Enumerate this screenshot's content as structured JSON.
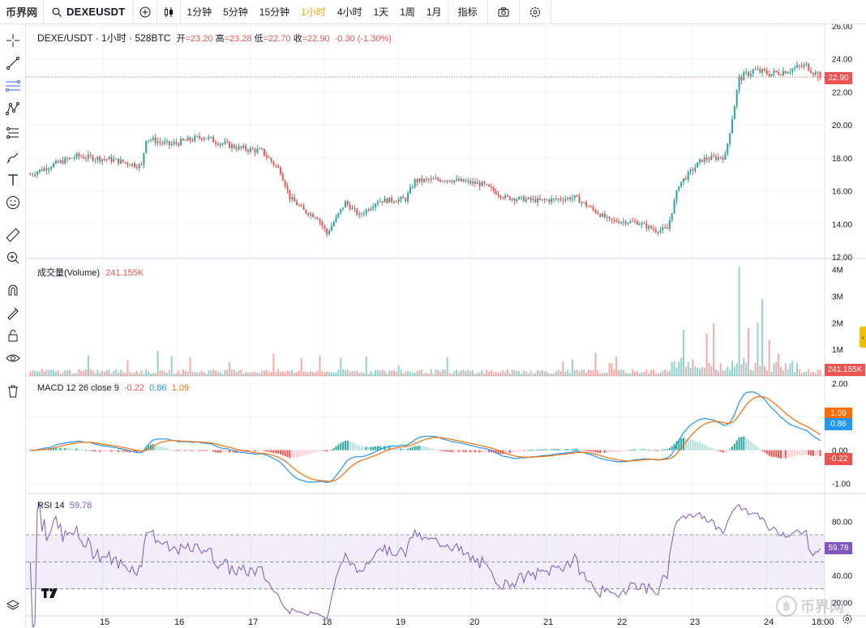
{
  "toolbar": {
    "logo": "币界网",
    "symbol": "DEXEUSDT",
    "intervals": [
      "1分钟",
      "5分钟",
      "15分钟",
      "1小时",
      "4小时",
      "1天",
      "1周",
      "1月"
    ],
    "active_interval": "1小时",
    "indicators_label": "指标"
  },
  "main_legend": {
    "title": "DEXE/USDT · 1小时 · 528BTC",
    "open_label": "开",
    "open": "=23.20",
    "high_label": "高",
    "high": "=23.28",
    "low_label": "低",
    "low": "=22.70",
    "close_label": "收",
    "close": "=22.90",
    "change": "-0.30 (-1.30%)"
  },
  "volume_legend": {
    "label": "成交量(Volume)",
    "value": "241.155K"
  },
  "macd_legend": {
    "label": "MACD 12 26 close 9",
    "hist": "-0.22",
    "macd": "0.86",
    "signal": "1.09"
  },
  "rsi_legend": {
    "label": "RSI 14",
    "value": "59.78"
  },
  "price_axis": [
    "26.00",
    "24.00",
    "22.00",
    "20.00",
    "18.00",
    "16.00",
    "14.00",
    "12.00"
  ],
  "price_tag": "22.90",
  "volume_axis": [
    "4M",
    "3M",
    "2M",
    "1M"
  ],
  "volume_tag": "241.155K",
  "macd_axis": [
    "2.00",
    "1.00",
    "0.00",
    "-1.00"
  ],
  "macd_tags": [
    "1.09",
    "0.86",
    "-0.22"
  ],
  "rsi_axis": [
    "80.00",
    "60.00",
    "40.00",
    "20.00"
  ],
  "rsi_tag": "59.78",
  "time_axis": [
    "15",
    "16",
    "17",
    "18",
    "19",
    "20",
    "21",
    "22",
    "23",
    "24",
    "18:00"
  ],
  "watermark": "币界网",
  "colors": {
    "up": "#26a69a",
    "down": "#ef5350",
    "macd": "#2196f3",
    "signal": "#ff6d00",
    "rsi": "#7e57c2",
    "accent": "#f0a500"
  },
  "chart_data": {
    "type": "candlestick",
    "price_ylim": [
      12,
      26
    ],
    "close_anchors": [
      [
        0,
        17.0
      ],
      [
        10,
        17.6
      ],
      [
        20,
        18.1
      ],
      [
        35,
        17.9
      ],
      [
        48,
        17.5
      ],
      [
        50,
        19.2
      ],
      [
        60,
        18.8
      ],
      [
        75,
        19.3
      ],
      [
        80,
        19.0
      ],
      [
        90,
        18.6
      ],
      [
        100,
        18.4
      ],
      [
        108,
        17.2
      ],
      [
        112,
        15.6
      ],
      [
        118,
        14.8
      ],
      [
        124,
        14.4
      ],
      [
        128,
        13.4
      ],
      [
        136,
        15.3
      ],
      [
        142,
        14.5
      ],
      [
        150,
        15.4
      ],
      [
        162,
        15.5
      ],
      [
        166,
        16.6
      ],
      [
        180,
        16.7
      ],
      [
        195,
        16.4
      ],
      [
        205,
        15.6
      ],
      [
        220,
        15.4
      ],
      [
        235,
        15.6
      ],
      [
        250,
        14.2
      ],
      [
        262,
        14.1
      ],
      [
        270,
        13.6
      ],
      [
        275,
        13.7
      ],
      [
        280,
        16.4
      ],
      [
        290,
        17.9
      ],
      [
        300,
        18.1
      ],
      [
        306,
        22.8
      ],
      [
        312,
        23.3
      ],
      [
        320,
        23.1
      ],
      [
        335,
        23.6
      ],
      [
        341,
        22.9
      ]
    ],
    "volume_ylim": [
      0,
      4200000
    ],
    "macd_ylim": [
      -1.3,
      2.2
    ],
    "rsi_ylim": [
      10,
      100
    ],
    "last": {
      "open": 23.2,
      "high": 23.28,
      "low": 22.7,
      "close": 22.9,
      "volume": 241155,
      "macd": 0.86,
      "signal": 1.09,
      "histogram": -0.22,
      "rsi": 59.78
    }
  }
}
